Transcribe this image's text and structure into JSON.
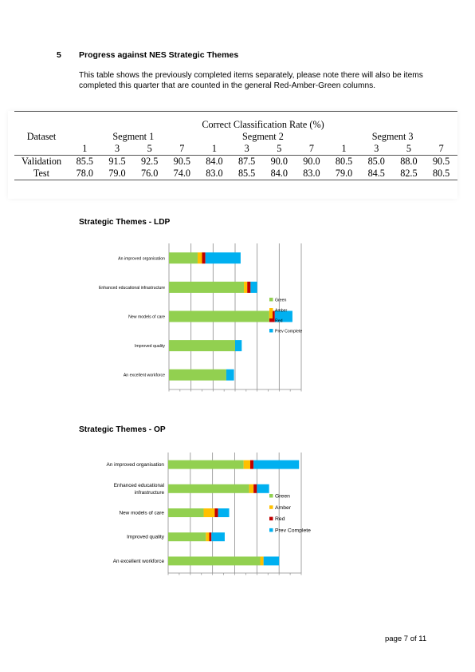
{
  "section": {
    "number": "5",
    "title": "Progress against NES Strategic Themes",
    "intro": "This table shows the previously completed items separately, please note there will also be items completed this quarter that are counted in the general Red-Amber-Green columns."
  },
  "table": {
    "super_header": "Correct Classification Rate (%)",
    "dataset_header": "Dataset",
    "segments": [
      "Segment 1",
      "Segment 2",
      "Segment 3"
    ],
    "subheaders": [
      "1",
      "3",
      "5",
      "7",
      "1",
      "3",
      "5",
      "7",
      "1",
      "3",
      "5",
      "7"
    ],
    "rows": [
      {
        "label": "Validation",
        "values": [
          "85.5",
          "91.5",
          "92.5",
          "90.5",
          "84.0",
          "87.5",
          "90.0",
          "90.0",
          "80.5",
          "85.0",
          "88.0",
          "90.5"
        ]
      },
      {
        "label": "Test",
        "values": [
          "78.0",
          "79.0",
          "76.0",
          "74.0",
          "83.0",
          "85.5",
          "84.0",
          "83.0",
          "79.0",
          "84.5",
          "82.5",
          "80.5"
        ]
      }
    ]
  },
  "colors": {
    "green": "#92d050",
    "amber": "#ffc000",
    "red": "#c00000",
    "prev_complete": "#00b0f0"
  },
  "chart_data": [
    {
      "type": "bar",
      "orientation": "horizontal",
      "stacked": true,
      "title": "Strategic Themes - LDP",
      "categories": [
        "An improved organisation",
        "Enhanced educational infrastructure",
        "New models of care",
        "Improved quality",
        "An excellent workforce"
      ],
      "series": [
        {
          "name": "Green",
          "values": [
            2.6,
            6.8,
            9.1,
            6.0,
            5.2
          ]
        },
        {
          "name": "Amber",
          "values": [
            0.4,
            0.3,
            0.3,
            0,
            0
          ]
        },
        {
          "name": "Red",
          "values": [
            0.3,
            0.3,
            0.2,
            0,
            0
          ]
        },
        {
          "name": "Prev Complete",
          "values": [
            3.2,
            0.6,
            1.6,
            0.6,
            0.7
          ]
        }
      ],
      "xlim": [
        0,
        12
      ],
      "grid": true,
      "legend": "right"
    },
    {
      "type": "bar",
      "orientation": "horizontal",
      "stacked": true,
      "title": "Strategic Themes - OP",
      "categories": [
        "An improved organisation",
        "Enhanced educational infrastructure",
        "New models of care",
        "Improved quality",
        "An excellent workforce"
      ],
      "series": [
        {
          "name": "Green",
          "values": [
            6.8,
            7.3,
            3.2,
            3.4,
            8.3
          ]
        },
        {
          "name": "Amber",
          "values": [
            0.6,
            0.4,
            1.0,
            0.3,
            0.3
          ]
        },
        {
          "name": "Red",
          "values": [
            0.3,
            0.3,
            0.3,
            0.2,
            0
          ]
        },
        {
          "name": "Prev Complete",
          "values": [
            4.1,
            1.1,
            1.0,
            1.2,
            1.4
          ]
        }
      ],
      "xlim": [
        0,
        12
      ],
      "grid": true,
      "legend": "right"
    }
  ],
  "footer": {
    "page": "page 7 of 11"
  }
}
